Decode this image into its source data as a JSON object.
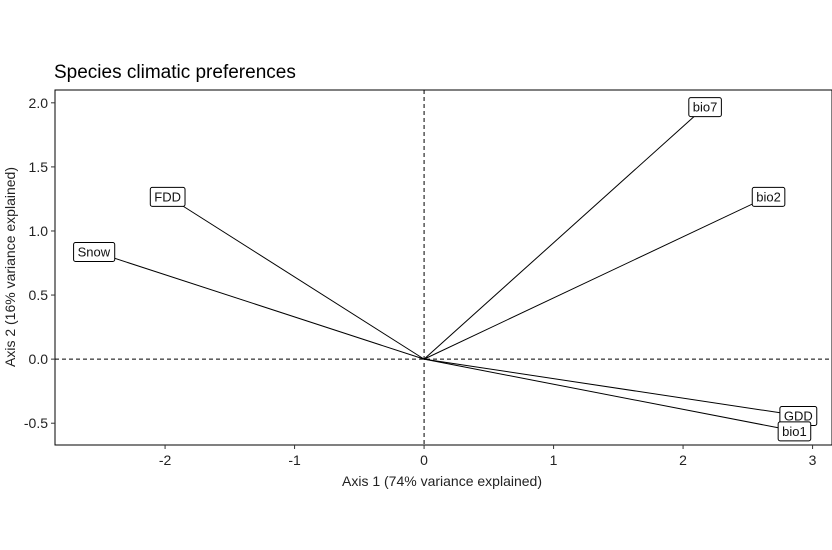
{
  "chart_data": {
    "type": "scatter",
    "subtype": "biplot-arrows",
    "title": "Species climatic preferences",
    "xlabel": "Axis 1 (74% variance explained)",
    "ylabel": "Axis 2 (16% variance explained)",
    "xlim": [
      -2.85,
      3.15
    ],
    "ylim": [
      -0.67,
      2.1
    ],
    "xticks": [
      -2,
      -1,
      0,
      1,
      2,
      3
    ],
    "yticks": [
      -0.5,
      0.0,
      0.5,
      1.0,
      1.5,
      2.0
    ],
    "xtick_labels": [
      "-2",
      "-1",
      "0",
      "1",
      "2",
      "3"
    ],
    "ytick_labels": [
      "-0.5",
      "0.0",
      "0.5",
      "1.0",
      "1.5",
      "2.0"
    ],
    "reference_lines": {
      "x": 0,
      "y": 0,
      "style": "dashed"
    },
    "grid": false,
    "origin": [
      0,
      0
    ],
    "vectors": [
      {
        "name": "FDD",
        "x": -1.98,
        "y": 1.27
      },
      {
        "name": "Snow",
        "x": -2.55,
        "y": 0.84
      },
      {
        "name": "bio7",
        "x": 2.17,
        "y": 1.97
      },
      {
        "name": "bio2",
        "x": 2.66,
        "y": 1.27
      },
      {
        "name": "GDD",
        "x": 2.89,
        "y": -0.44
      },
      {
        "name": "bio1",
        "x": 2.86,
        "y": -0.56
      }
    ]
  }
}
